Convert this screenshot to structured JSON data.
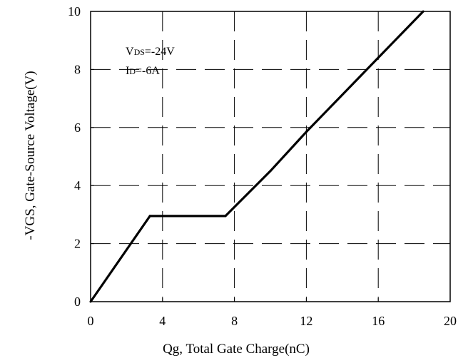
{
  "chart_data": {
    "type": "line",
    "xlabel": "Qg, Total Gate Charge(nC)",
    "ylabel": "-VGS, Gate-Source Voltage(V)",
    "xlim": [
      0,
      20
    ],
    "ylim": [
      0,
      10
    ],
    "xticks": [
      0,
      4,
      8,
      12,
      16,
      20
    ],
    "yticks": [
      0,
      2,
      4,
      6,
      8,
      10
    ],
    "x_tick_labels": [
      "0",
      "4",
      "8",
      "12",
      "16",
      "20"
    ],
    "y_tick_labels": [
      "0",
      "2",
      "4",
      "6",
      "8",
      "10"
    ],
    "grid": true,
    "grid_style": "dashed",
    "series": [
      {
        "color": "#000000",
        "points": [
          [
            0,
            0
          ],
          [
            3.3,
            2.95
          ],
          [
            7.5,
            2.95
          ],
          [
            10,
            4.5
          ],
          [
            12,
            5.85
          ],
          [
            18.5,
            10
          ]
        ]
      }
    ],
    "annotations": [
      {
        "main": "V",
        "sub": "DS",
        "tail": "=-24V"
      },
      {
        "main": "I",
        "sub": "D",
        "tail": "=-6A"
      }
    ]
  }
}
